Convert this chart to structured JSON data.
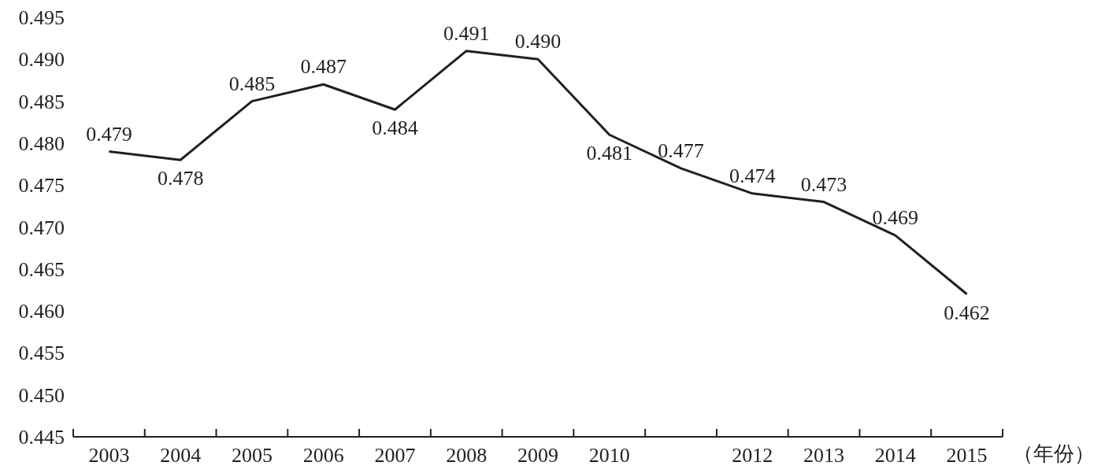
{
  "chart_data": {
    "type": "line",
    "xlabel": "（年份）",
    "color": "#231f20",
    "categories": [
      "2003",
      "2004",
      "2005",
      "2006",
      "2007",
      "2008",
      "2009",
      "2010",
      null,
      "2012",
      "2013",
      "2014",
      "2015"
    ],
    "values": [
      0.479,
      0.478,
      0.485,
      0.487,
      0.484,
      0.491,
      0.49,
      0.481,
      0.477,
      0.474,
      0.473,
      0.469,
      0.462
    ],
    "value_labels": [
      "0.479",
      "0.478",
      "0.485",
      "0.487",
      "0.484",
      "0.491",
      "0.490",
      "0.481",
      "0.477",
      "0.474",
      "0.473",
      "0.469",
      "0.462"
    ],
    "ylim": [
      0.445,
      0.495
    ],
    "yticks": [
      {
        "value": 0.445,
        "label": "0.445"
      },
      {
        "value": 0.45,
        "label": "0.450"
      },
      {
        "value": 0.455,
        "label": "0.455"
      },
      {
        "value": 0.46,
        "label": "0.460"
      },
      {
        "value": 0.465,
        "label": "0.465"
      },
      {
        "value": 0.47,
        "label": "0.470"
      },
      {
        "value": 0.475,
        "label": "0.475"
      },
      {
        "value": 0.48,
        "label": "0.480"
      },
      {
        "value": 0.485,
        "label": "0.485"
      },
      {
        "value": 0.49,
        "label": "0.490"
      },
      {
        "value": 0.495,
        "label": "0.495"
      }
    ],
    "grid": false,
    "marker": "none",
    "line_style": "solid"
  }
}
